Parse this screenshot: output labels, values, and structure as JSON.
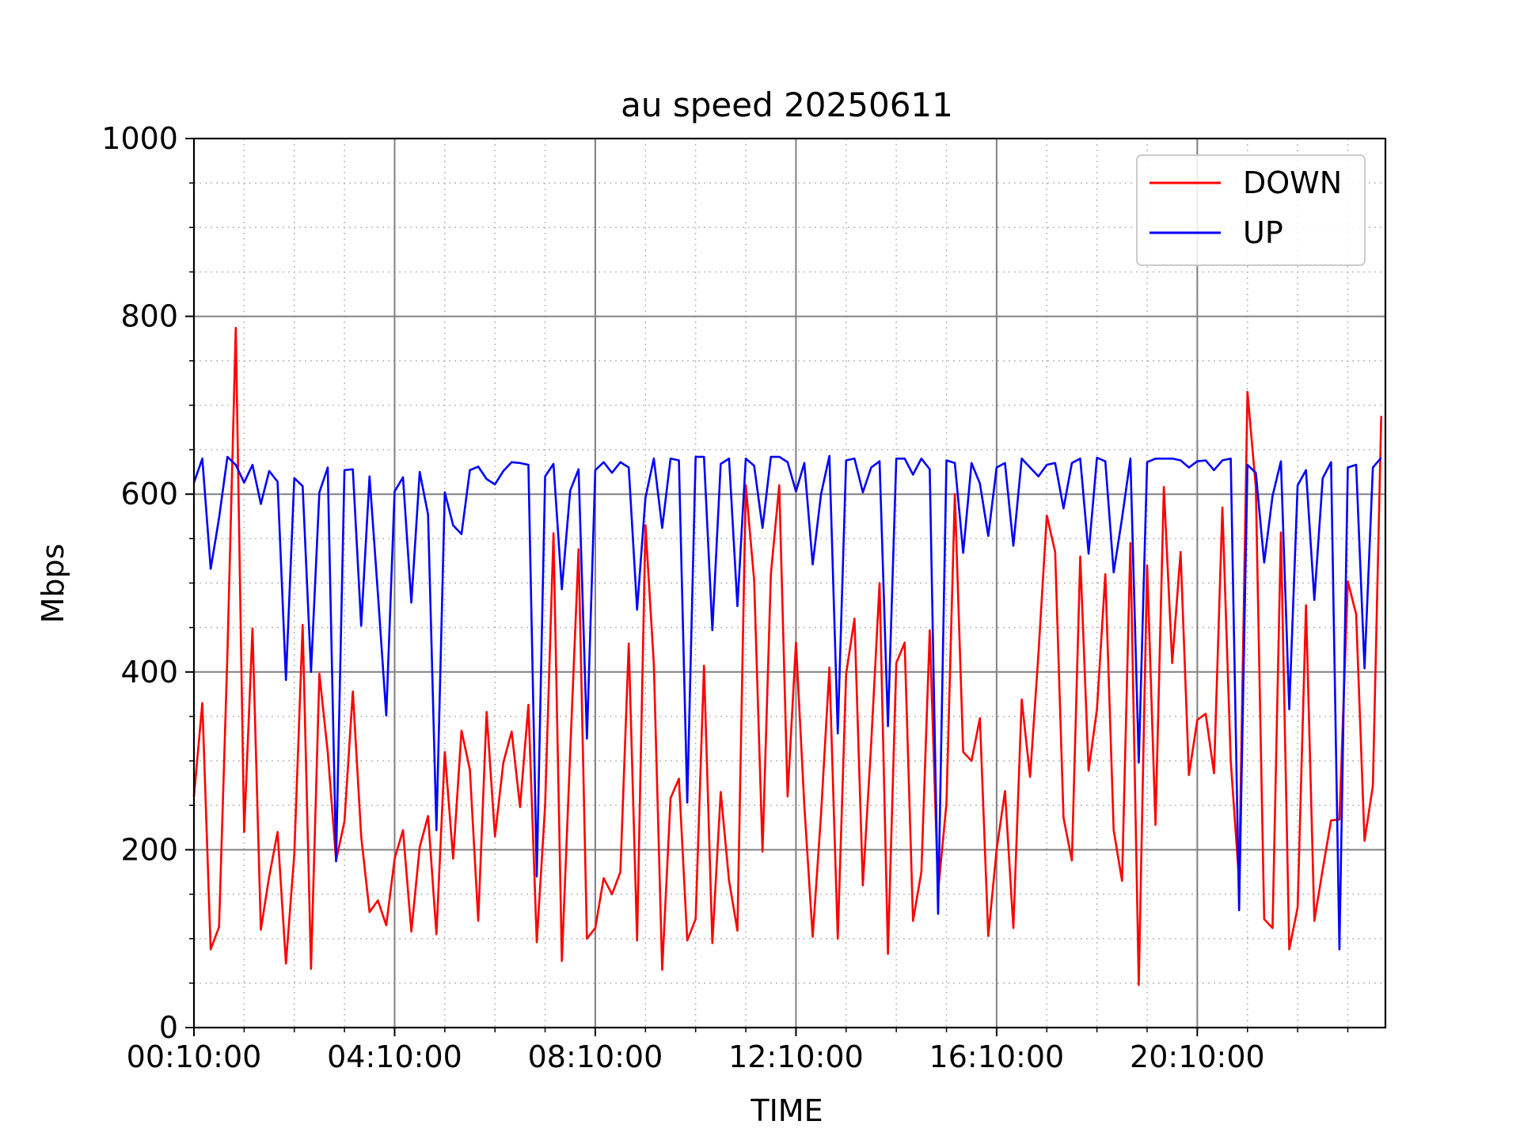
{
  "chart_data": {
    "type": "line",
    "title": "au speed 20250611",
    "xlabel": "TIME",
    "ylabel": "Mbps",
    "ylim": [
      0,
      1000
    ],
    "yticks": [
      0,
      200,
      400,
      600,
      800,
      1000
    ],
    "xlim": [
      "00:10:00",
      "23:55:00"
    ],
    "xticks": [
      "00:10:00",
      "04:10:00",
      "08:10:00",
      "12:10:00",
      "16:10:00",
      "20:10:00"
    ],
    "sample_interval": "00:10:00",
    "grid": true,
    "legend_position": "top-right",
    "series": [
      {
        "name": "DOWN",
        "color": "#ff0000",
        "values": [
          260,
          365,
          88,
          113,
          420,
          787,
          220,
          449,
          110,
          170,
          220,
          72,
          195,
          453,
          66,
          398,
          310,
          188,
          232,
          378,
          215,
          130,
          143,
          115,
          190,
          222,
          108,
          203,
          238,
          105,
          310,
          190,
          334,
          290,
          120,
          355,
          215,
          298,
          333,
          248,
          363,
          96,
          250,
          556,
          75,
          310,
          538,
          100,
          112,
          168,
          150,
          175,
          432,
          98,
          565,
          409,
          65,
          258,
          280,
          98,
          122,
          407,
          95,
          265,
          165,
          109,
          610,
          503,
          198,
          510,
          610,
          260,
          433,
          250,
          102,
          240,
          405,
          100,
          398,
          460,
          160,
          320,
          500,
          83,
          410,
          433,
          120,
          175,
          447,
          153,
          252,
          600,
          310,
          300,
          348,
          103,
          200,
          266,
          112,
          369,
          282,
          420,
          576,
          535,
          236,
          188,
          530,
          289,
          358,
          510,
          222,
          165,
          545,
          48,
          520,
          228,
          608,
          410,
          535,
          284,
          346,
          353,
          286,
          585,
          300,
          165,
          715,
          608,
          122,
          112,
          557,
          88,
          135,
          475,
          120,
          178,
          233,
          234,
          502,
          465,
          210,
          272,
          688
        ]
      },
      {
        "name": "UP",
        "color": "#0000ff",
        "values": [
          613,
          640,
          516,
          573,
          642,
          633,
          613,
          633,
          589,
          626,
          614,
          391,
          618,
          609,
          400,
          602,
          630,
          187,
          627,
          628,
          452,
          620,
          488,
          351,
          603,
          619,
          478,
          625,
          577,
          222,
          602,
          565,
          555,
          627,
          631,
          617,
          611,
          626,
          636,
          635,
          633,
          170,
          620,
          634,
          493,
          604,
          628,
          325,
          627,
          636,
          624,
          636,
          630,
          470,
          596,
          640,
          562,
          640,
          638,
          253,
          642,
          642,
          447,
          634,
          640,
          474,
          640,
          632,
          562,
          642,
          642,
          636,
          603,
          635,
          521,
          600,
          643,
          331,
          638,
          640,
          602,
          630,
          637,
          339,
          640,
          640,
          622,
          640,
          628,
          128,
          638,
          635,
          534,
          635,
          612,
          553,
          630,
          635,
          542,
          640,
          630,
          620,
          633,
          635,
          584,
          635,
          640,
          533,
          641,
          637,
          512,
          573,
          640,
          298,
          636,
          640,
          640,
          640,
          638,
          630,
          637,
          638,
          627,
          638,
          640,
          132,
          633,
          624,
          523,
          598,
          637,
          358,
          610,
          627,
          481,
          618,
          636,
          88,
          630,
          633,
          404,
          630,
          641
        ]
      }
    ]
  }
}
